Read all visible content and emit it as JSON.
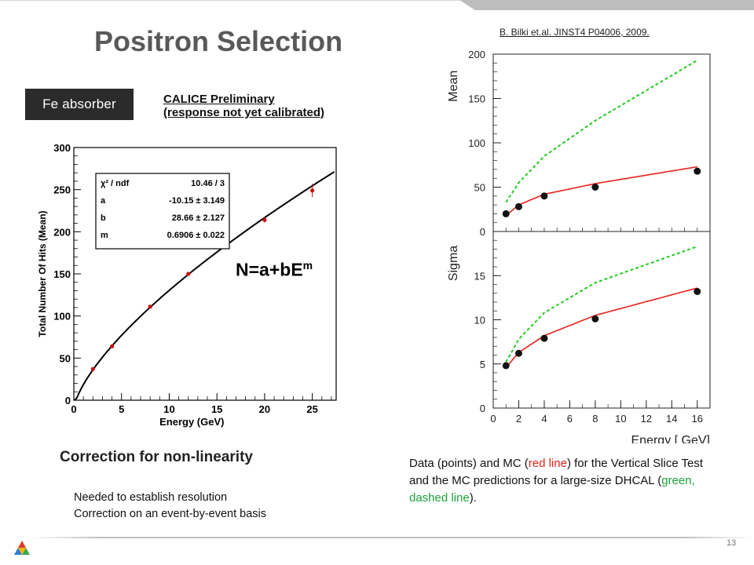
{
  "slide": {
    "title": "Positron Selection",
    "citation": "B. Bilki et.al. JINST4 P04006, 2009.",
    "badge": "Fe absorber",
    "preliminary": [
      "CALICE Preliminary",
      "(response not yet calibrated)"
    ],
    "formula": {
      "base": "N=a+bE",
      "exponent": "m"
    },
    "section_heading": "Correction for non-linearity",
    "bullets": [
      "Needed to establish resolution",
      "Correction on an event-by-event basis"
    ],
    "caption": {
      "p1": "Data (points) and MC (",
      "red": "red line",
      "p2": ") for the Vertical Slice Test and the MC predictions for a large-size DHCAL (",
      "green": "green, dashed line",
      "p3": ")."
    },
    "page_number": "13"
  },
  "colors": {
    "fit_curve": "#000000",
    "data_points": "#cc1010",
    "mc_red": "#e8221c",
    "mc_green": "#22cc22",
    "badge_bg": "#2b2b2b",
    "title": "#595959"
  },
  "chart_data": [
    {
      "type": "scatter",
      "xlabel": "Energy (GeV)",
      "ylabel": "Total Number Of Hits (Mean)",
      "xlim": [
        0,
        27.5
      ],
      "ylim": [
        0,
        300
      ],
      "xticks": [
        0,
        5,
        10,
        15,
        20,
        25
      ],
      "yticks": [
        0,
        50,
        100,
        150,
        200,
        250,
        300
      ],
      "series": [
        {
          "x": [
            2,
            4,
            8,
            12,
            20,
            25
          ],
          "y": [
            37,
            64,
            111,
            150,
            214,
            249
          ],
          "err": [
            0,
            0,
            0,
            0,
            3,
            8
          ]
        }
      ],
      "fit": {
        "a": -10.15,
        "b": 28.66,
        "m": 0.6906
      },
      "stats_box": [
        {
          "label": "χ² / ndf",
          "value": "10.46 / 3"
        },
        {
          "label": "a",
          "value": "-10.15 ± 3.149"
        },
        {
          "label": "b",
          "value": "28.66 ± 2.127"
        },
        {
          "label": "m",
          "value": "0.6906 ± 0.022"
        }
      ]
    },
    {
      "type": "scatter",
      "xlabel": "",
      "ylabel": "Mean",
      "xlim": [
        0,
        17
      ],
      "ylim": [
        0,
        200
      ],
      "yticks": [
        0,
        50,
        100,
        150,
        200
      ],
      "series": [
        {
          "x": [
            1,
            2,
            4,
            8,
            16
          ],
          "y": [
            20,
            28,
            40,
            50,
            68
          ]
        }
      ],
      "red_line": {
        "x": [
          1,
          2,
          4,
          8,
          16
        ],
        "y": [
          18,
          30,
          42,
          54,
          73
        ]
      },
      "green_dashed": {
        "x": [
          1,
          2,
          4,
          8,
          16
        ],
        "y": [
          33,
          55,
          85,
          125,
          193
        ]
      }
    },
    {
      "type": "scatter",
      "xlabel": "Energy [ GeV]",
      "ylabel": "Sigma",
      "xlim": [
        0,
        17
      ],
      "ylim": [
        0,
        20
      ],
      "xticks": [
        0,
        2,
        4,
        6,
        8,
        10,
        12,
        14,
        16
      ],
      "yticks": [
        0,
        5,
        10,
        15
      ],
      "series": [
        {
          "x": [
            1,
            2,
            4,
            8,
            16
          ],
          "y": [
            4.8,
            6.2,
            7.9,
            10.1,
            13.2
          ]
        }
      ],
      "red_line": {
        "x": [
          1,
          2,
          4,
          8,
          16
        ],
        "y": [
          4.6,
          6.3,
          8.2,
          10.5,
          13.6
        ]
      },
      "green_dashed": {
        "x": [
          1,
          2,
          4,
          8,
          16
        ],
        "y": [
          5.2,
          7.8,
          10.8,
          14.2,
          18.3
        ]
      }
    }
  ]
}
